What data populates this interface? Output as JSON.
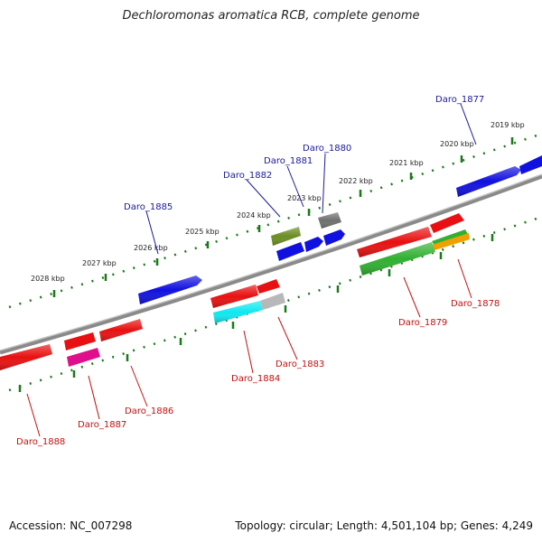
{
  "title": "Dechloromonas aromatica RCB, complete genome",
  "accession_text": "Accession: NC_007298",
  "summary_text": "Topology: circular; Length: 4,501,104 bp; Genes: 4,249",
  "scale_labels": [
    "2019 kbp",
    "2020 kbp",
    "2021 kbp",
    "2022 kbp",
    "2023 kbp",
    "2024 kbp",
    "2025 kbp",
    "2026 kbp",
    "2027 kbp",
    "2028 kbp"
  ],
  "genes_top": [
    "Daro_1877",
    "Daro_1880",
    "Daro_1881",
    "Daro_1882",
    "Daro_1885"
  ],
  "genes_bottom": [
    "Daro_1878",
    "Daro_1879",
    "Daro_1883",
    "Daro_1884",
    "Daro_1886",
    "Daro_1887",
    "Daro_1888"
  ],
  "colors": {
    "backbone": "#808080",
    "scale_dots": "#1a7a1a",
    "red": "#e81010",
    "blue": "#1010e0",
    "green": "#30b030",
    "olive": "#6b8e23",
    "cyan": "#10e8f0",
    "magenta": "#e0108c",
    "orange": "#f0a000",
    "gray": "#707070",
    "lightgray": "#b8b8b8"
  }
}
